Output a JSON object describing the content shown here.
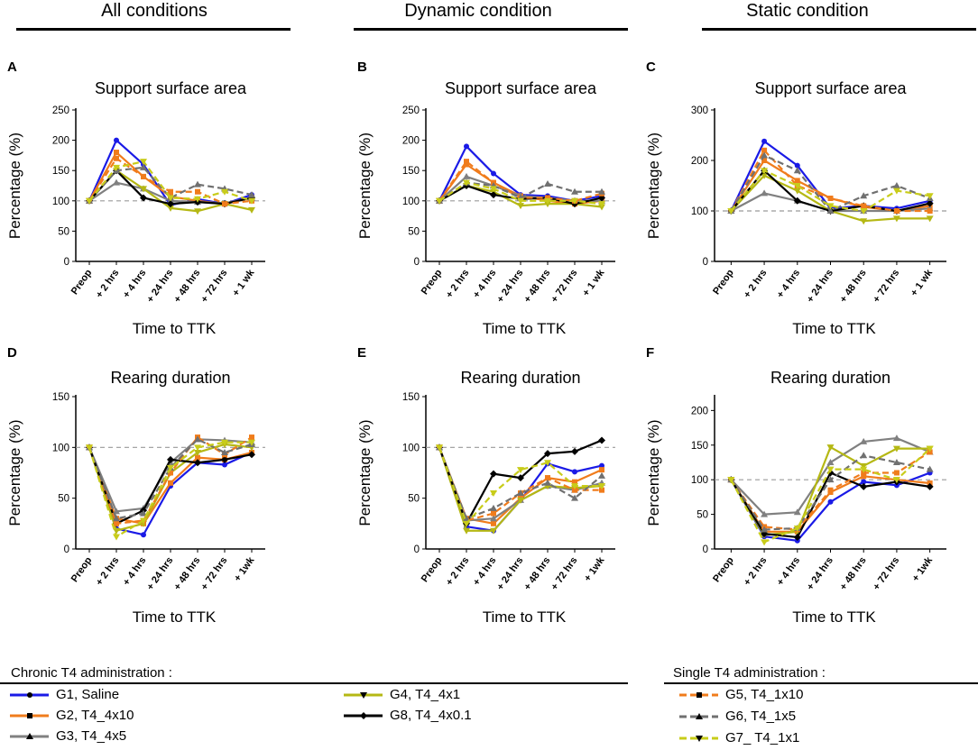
{
  "columns": [
    "All conditions",
    "Dynamic condition",
    "Static condition"
  ],
  "series_styles": {
    "G1": {
      "color": "#1a1ae6",
      "dashed": false,
      "marker": "circle"
    },
    "G2": {
      "color": "#f07c1c",
      "dashed": false,
      "marker": "square"
    },
    "G3": {
      "color": "#808080",
      "dashed": false,
      "marker": "triangle"
    },
    "G4": {
      "color": "#b5b814",
      "dashed": false,
      "marker": "triangle-down"
    },
    "G8": {
      "color": "#000000",
      "dashed": false,
      "marker": "diamond"
    },
    "G5": {
      "color": "#f07c1c",
      "dashed": true,
      "marker": "square"
    },
    "G6": {
      "color": "#707070",
      "dashed": true,
      "marker": "triangle"
    },
    "G7": {
      "color": "#c8cc1a",
      "dashed": true,
      "marker": "triangle-down"
    }
  },
  "chart_data": [
    {
      "panel": "A",
      "type": "line",
      "title": "Support surface area",
      "xlabel": "Time to TTK",
      "ylabel": "Percentage  (%)",
      "categories": [
        "Preop",
        "+ 2 hrs",
        "+ 4 hrs",
        "+ 24 hrs",
        "+ 48 hrs",
        "+ 72 hrs",
        "+ 1 wk"
      ],
      "ylim": [
        0,
        250
      ],
      "yticks": [
        0,
        50,
        100,
        150,
        200,
        250
      ],
      "reference_line": 100,
      "series": [
        {
          "name": "G1",
          "values": [
            100,
            200,
            160,
            93,
            103,
            95,
            110
          ]
        },
        {
          "name": "G2",
          "values": [
            100,
            180,
            140,
            107,
            100,
            95,
            105
          ]
        },
        {
          "name": "G3",
          "values": [
            100,
            130,
            120,
            100,
            98,
            96,
            105
          ]
        },
        {
          "name": "G4",
          "values": [
            100,
            150,
            120,
            88,
            83,
            95,
            85
          ]
        },
        {
          "name": "G8",
          "values": [
            100,
            150,
            105,
            95,
            98,
            95,
            105
          ]
        },
        {
          "name": "G5",
          "values": [
            100,
            170,
            140,
            115,
            115,
            95,
            100
          ]
        },
        {
          "name": "G6",
          "values": [
            100,
            150,
            155,
            105,
            127,
            120,
            110
          ]
        },
        {
          "name": "G7",
          "values": [
            100,
            155,
            165,
            105,
            103,
            115,
            100
          ]
        }
      ]
    },
    {
      "panel": "B",
      "type": "line",
      "title": "Support surface area",
      "xlabel": "Time to TTK",
      "ylabel": "Percentage  (%)",
      "categories": [
        "Preop",
        "+ 2 hrs",
        "+ 4 hrs",
        "+ 24 hrs",
        "+ 48 hrs",
        "+ 72 hrs",
        "+ 1 wk"
      ],
      "ylim": [
        0,
        250
      ],
      "yticks": [
        0,
        50,
        100,
        150,
        200,
        250
      ],
      "reference_line": 100,
      "series": [
        {
          "name": "G1",
          "values": [
            100,
            190,
            145,
            110,
            108,
            100,
            108
          ]
        },
        {
          "name": "G2",
          "values": [
            100,
            160,
            130,
            108,
            100,
            95,
            100
          ]
        },
        {
          "name": "G3",
          "values": [
            100,
            140,
            125,
            108,
            105,
            100,
            100
          ]
        },
        {
          "name": "G4",
          "values": [
            100,
            125,
            115,
            92,
            95,
            95,
            90
          ]
        },
        {
          "name": "G8",
          "values": [
            100,
            125,
            110,
            103,
            105,
            95,
            105
          ]
        },
        {
          "name": "G5",
          "values": [
            100,
            165,
            130,
            105,
            105,
            100,
            112
          ]
        },
        {
          "name": "G6",
          "values": [
            100,
            130,
            125,
            105,
            128,
            115,
            115
          ]
        },
        {
          "name": "G7",
          "values": [
            100,
            130,
            120,
            100,
            100,
            100,
            95
          ]
        }
      ]
    },
    {
      "panel": "C",
      "type": "line",
      "title": "Support surface area",
      "xlabel": "Time to TTK",
      "ylabel": "Percentage  (%)",
      "categories": [
        "Preop",
        "+ 2 hrs",
        "+ 4 hrs",
        "+ 24 hrs",
        "+ 48 hrs",
        "+ 72 hrs",
        "+ 1 wk"
      ],
      "ylim": [
        0,
        300
      ],
      "yticks": [
        0,
        100,
        200,
        300
      ],
      "reference_line": 100,
      "series": [
        {
          "name": "G1",
          "values": [
            100,
            238,
            190,
            105,
            110,
            105,
            120
          ]
        },
        {
          "name": "G2",
          "values": [
            100,
            200,
            160,
            125,
            108,
            100,
            110
          ]
        },
        {
          "name": "G3",
          "values": [
            100,
            135,
            120,
            100,
            100,
            100,
            105
          ]
        },
        {
          "name": "G4",
          "values": [
            100,
            170,
            140,
            100,
            80,
            85,
            85
          ]
        },
        {
          "name": "G8",
          "values": [
            100,
            180,
            120,
            100,
            110,
            100,
            115
          ]
        },
        {
          "name": "G5",
          "values": [
            100,
            220,
            150,
            125,
            110,
            100,
            100
          ]
        },
        {
          "name": "G6",
          "values": [
            100,
            210,
            180,
            100,
            130,
            150,
            125
          ]
        },
        {
          "name": "G7",
          "values": [
            100,
            180,
            150,
            110,
            100,
            140,
            130
          ]
        }
      ]
    },
    {
      "panel": "D",
      "type": "line",
      "title": "Rearing duration",
      "xlabel": "Time to TTK",
      "ylabel": "Percentage  (%)",
      "categories": [
        "Preop",
        "+ 2 hrs",
        "+ 4 hrs",
        "+ 24 hrs",
        "+ 48 hrs",
        "+ 72 hrs",
        "+ 1wk"
      ],
      "ylim": [
        0,
        150
      ],
      "yticks": [
        0,
        50,
        100,
        150
      ],
      "reference_line": 100,
      "series": [
        {
          "name": "G1",
          "values": [
            100,
            20,
            14,
            62,
            85,
            83,
            95
          ]
        },
        {
          "name": "G2",
          "values": [
            100,
            30,
            25,
            65,
            90,
            88,
            95
          ]
        },
        {
          "name": "G3",
          "values": [
            100,
            37,
            40,
            85,
            108,
            107,
            105
          ]
        },
        {
          "name": "G4",
          "values": [
            100,
            18,
            25,
            75,
            95,
            103,
            100
          ]
        },
        {
          "name": "G8",
          "values": [
            100,
            25,
            38,
            88,
            85,
            88,
            93
          ]
        },
        {
          "name": "G5",
          "values": [
            100,
            25,
            28,
            75,
            110,
            93,
            110
          ]
        },
        {
          "name": "G6",
          "values": [
            100,
            30,
            35,
            80,
            108,
            95,
            103
          ]
        },
        {
          "name": "G7",
          "values": [
            100,
            12,
            28,
            80,
            100,
            105,
            105
          ]
        }
      ]
    },
    {
      "panel": "E",
      "type": "line",
      "title": "Rearing duration",
      "xlabel": "Time to TTK",
      "ylabel": "Percentage  (%)",
      "categories": [
        "Preop",
        "+ 2 hrs",
        "+ 4 hrs",
        "+ 24 hrs",
        "+ 48 hrs",
        "+ 72 hrs",
        "+ 1wk"
      ],
      "ylim": [
        0,
        150
      ],
      "yticks": [
        0,
        50,
        100,
        150
      ],
      "reference_line": 100,
      "series": [
        {
          "name": "G1",
          "values": [
            100,
            22,
            18,
            48,
            84,
            76,
            82
          ]
        },
        {
          "name": "G2",
          "values": [
            100,
            30,
            25,
            50,
            70,
            66,
            78
          ]
        },
        {
          "name": "G3",
          "values": [
            100,
            28,
            30,
            48,
            62,
            58,
            65
          ]
        },
        {
          "name": "G4",
          "values": [
            100,
            18,
            18,
            48,
            62,
            60,
            62
          ]
        },
        {
          "name": "G8",
          "values": [
            100,
            25,
            74,
            70,
            94,
            96,
            107
          ]
        },
        {
          "name": "G5",
          "values": [
            100,
            28,
            35,
            55,
            70,
            58,
            58
          ]
        },
        {
          "name": "G6",
          "values": [
            100,
            30,
            40,
            55,
            65,
            50,
            72
          ]
        },
        {
          "name": "G7",
          "values": [
            100,
            25,
            55,
            78,
            85,
            62,
            62
          ]
        }
      ]
    },
    {
      "panel": "F",
      "type": "line",
      "title": "Rearing duration",
      "xlabel": "Time to TTK",
      "ylabel": "Percentage  (%)",
      "categories": [
        "Preop",
        "+ 2 hrs",
        "+ 4 hrs",
        "+ 24 hrs",
        "+ 48 hrs",
        "+ 72 hrs",
        "+ 1wk"
      ],
      "ylim": [
        0,
        220
      ],
      "yticks": [
        0,
        50,
        100,
        150,
        200
      ],
      "reference_line": 100,
      "series": [
        {
          "name": "G1",
          "values": [
            100,
            18,
            12,
            68,
            97,
            92,
            110
          ]
        },
        {
          "name": "G2",
          "values": [
            100,
            25,
            25,
            82,
            105,
            100,
            95
          ]
        },
        {
          "name": "G3",
          "values": [
            100,
            50,
            53,
            125,
            155,
            160,
            140
          ]
        },
        {
          "name": "G4",
          "values": [
            100,
            20,
            25,
            147,
            120,
            145,
            145
          ]
        },
        {
          "name": "G8",
          "values": [
            100,
            22,
            17,
            110,
            90,
            97,
            90
          ]
        },
        {
          "name": "G5",
          "values": [
            100,
            32,
            28,
            85,
            110,
            110,
            140
          ]
        },
        {
          "name": "G6",
          "values": [
            100,
            28,
            30,
            100,
            135,
            125,
            115
          ]
        },
        {
          "name": "G7",
          "values": [
            100,
            10,
            30,
            115,
            115,
            100,
            145
          ]
        }
      ]
    }
  ],
  "legend": {
    "chronic_title": "Chronic T4 administration :",
    "single_title": "Single T4 administration :",
    "chronic_items": [
      {
        "key": "G1",
        "label": "G1, Saline"
      },
      {
        "key": "G2",
        "label": "G2, T4_4x10"
      },
      {
        "key": "G3",
        "label": "G3, T4_4x5"
      },
      {
        "key": "G4",
        "label": "G4, T4_4x1"
      },
      {
        "key": "G8",
        "label": "G8, T4_4x0.1"
      }
    ],
    "single_items": [
      {
        "key": "G5",
        "label": "G5, T4_1x10"
      },
      {
        "key": "G6",
        "label": "G6, T4_1x5"
      },
      {
        "key": "G7",
        "label": "G7_ T4_1x1"
      }
    ]
  }
}
